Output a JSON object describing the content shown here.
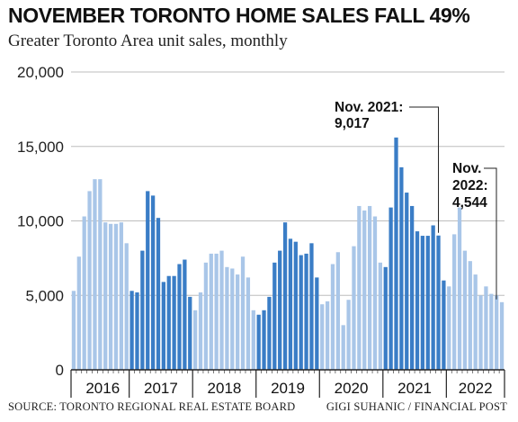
{
  "title": "NOVEMBER TORONTO HOME SALES FALL 49%",
  "subtitle": "Greater Toronto Area unit sales, monthly",
  "source": "SOURCE: TORONTO REGIONAL REAL ESTATE BOARD",
  "credit": "GIGI SUHANIC / FINANCIAL POST",
  "colors": {
    "light": "#a9c6e8",
    "dark": "#3a7dc6",
    "grid": "#bdbdbd",
    "axis": "#222222"
  },
  "chart_data": {
    "type": "bar",
    "ylim": [
      0,
      20000
    ],
    "y_ticks": [
      {
        "value": 0,
        "label": "0"
      },
      {
        "value": 5000,
        "label": "5,000"
      },
      {
        "value": 10000,
        "label": "10,000"
      },
      {
        "value": 15000,
        "label": "15,000"
      },
      {
        "value": 20000,
        "label": "20,000"
      }
    ],
    "grid": true,
    "start": "2015-12",
    "years": [
      {
        "label": "2016",
        "shade": "light",
        "values": [
          5300,
          7600,
          10300,
          12000,
          12800,
          12800,
          9900,
          9800,
          9800,
          9900,
          8500
        ]
      },
      {
        "label": "2017",
        "shade": "dark",
        "values": [
          5300,
          5200,
          8000,
          12000,
          11700,
          10200,
          5900,
          6300,
          6300,
          7100,
          7400,
          4900
        ]
      },
      {
        "label": "2018",
        "shade": "light",
        "values": [
          4000,
          5200,
          7200,
          7800,
          7800,
          8000,
          6900,
          6800,
          6400,
          7600,
          6200,
          4000
        ]
      },
      {
        "label": "2019",
        "shade": "dark",
        "values": [
          3700,
          4000,
          4900,
          7200,
          8000,
          9900,
          8800,
          8600,
          7700,
          7800,
          8500,
          6200
        ]
      },
      {
        "label": "2020",
        "shade": "light",
        "values": [
          4400,
          4600,
          7100,
          7900,
          3000,
          4700,
          8300,
          11000,
          10700,
          11000,
          10300,
          7200
        ]
      },
      {
        "label": "2021",
        "shade": "dark",
        "values": [
          6900,
          10900,
          15600,
          13600,
          11900,
          11000,
          9300,
          9000,
          9000,
          9700,
          9017,
          6000
        ]
      },
      {
        "label": "2022",
        "shade": "light",
        "values": [
          5600,
          9100,
          10900,
          8000,
          7300,
          6400,
          5000,
          5600,
          5100,
          5000,
          4544
        ]
      }
    ],
    "annotations": [
      {
        "year": "2021",
        "month": 11,
        "lines": [
          "Nov. 2021:",
          "9,017"
        ]
      },
      {
        "year": "2022",
        "month": 11,
        "lines": [
          "Nov.",
          "2022:",
          "4,544"
        ]
      }
    ]
  }
}
